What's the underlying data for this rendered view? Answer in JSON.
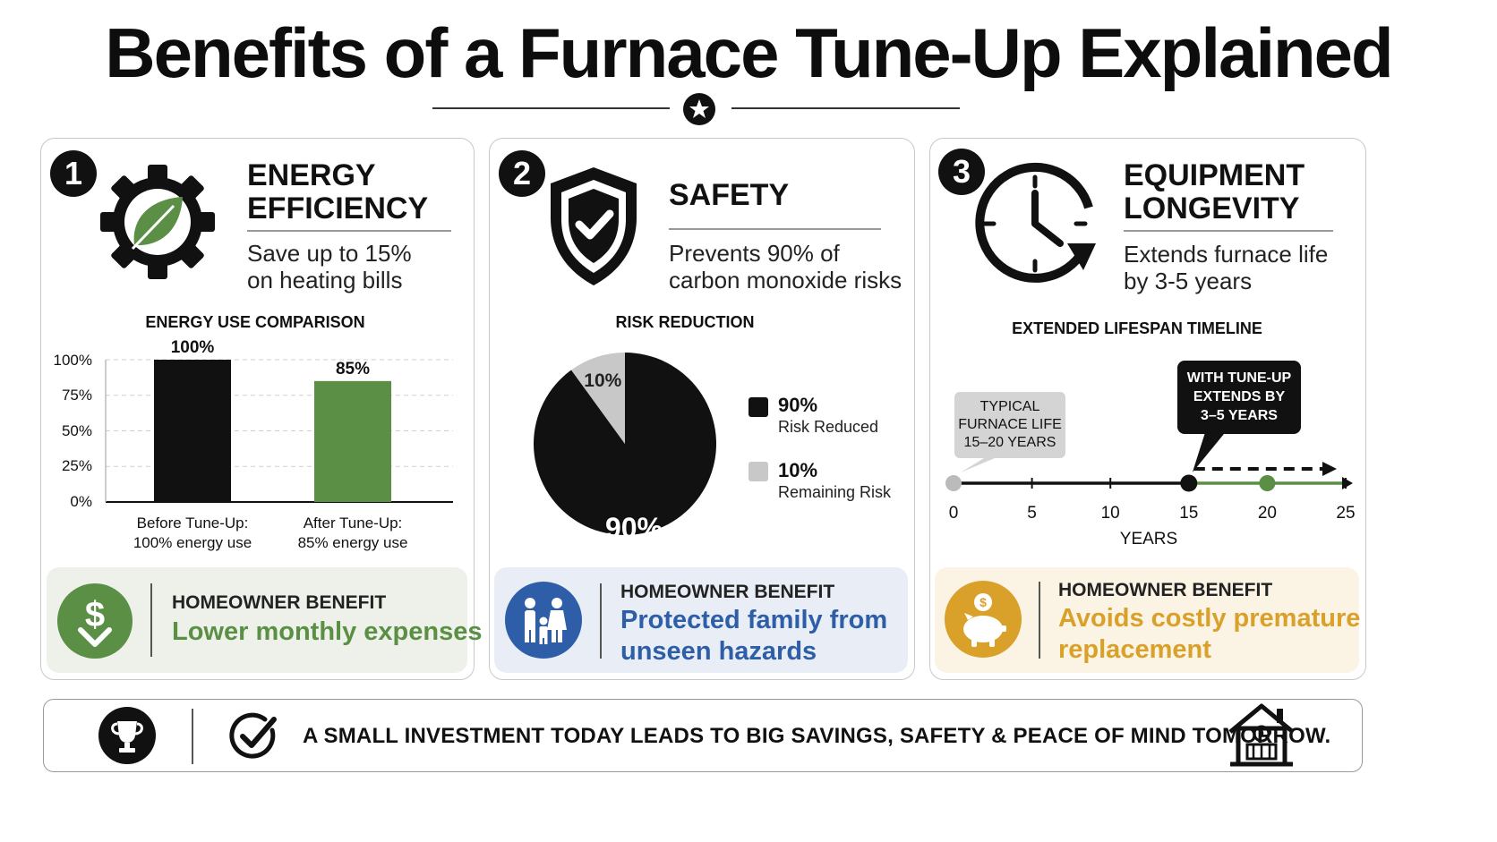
{
  "title": "Benefits of a Furnace Tune-Up Explained",
  "cards": [
    {
      "number": "1",
      "title_line1": "ENERGY",
      "title_line2": "EFFICIENCY",
      "subtitle_line1": "Save up to 15%",
      "subtitle_line2": "on heating bills",
      "icon": "gear-leaf-icon",
      "benefit_heading": "HOMEOWNER BENEFIT",
      "benefit_text": "Lower monthly expenses",
      "benefit_icon": "dollar-down-icon",
      "accent": "#5b8f45",
      "benefit_bg": "#edf1e9"
    },
    {
      "number": "2",
      "title_line1": "SAFETY",
      "subtitle_line1": "Prevents 90% of",
      "subtitle_line2": "carbon monoxide risks",
      "icon": "shield-check-icon",
      "benefit_heading": "HOMEOWNER BENEFIT",
      "benefit_text_line1": "Protected family from",
      "benefit_text_line2": "unseen hazards",
      "benefit_icon": "family-icon",
      "accent": "#2f5ea8",
      "benefit_bg": "#e8edf6"
    },
    {
      "number": "3",
      "title_line1": "EQUIPMENT",
      "title_line2": "LONGEVITY",
      "subtitle_line1": "Extends furnace life",
      "subtitle_line2": "by 3-5 years",
      "icon": "clock-icon",
      "benefit_heading": "HOMEOWNER BENEFIT",
      "benefit_text_line1": "Avoids costly premature",
      "benefit_text_line2": "replacement",
      "benefit_icon": "piggy-bank-icon",
      "accent": "#d9a12a",
      "benefit_bg": "#fbf3e3"
    }
  ],
  "chart_data": [
    {
      "type": "bar",
      "title": "ENERGY USE COMPARISON",
      "categories": [
        "Before Tune-Up:\n100% energy use",
        "After Tune-Up:\n85% energy use"
      ],
      "category_line1": [
        "Before Tune-Up:",
        "After Tune-Up:"
      ],
      "category_line2": [
        "100% energy use",
        "85% energy use"
      ],
      "values": [
        100,
        85
      ],
      "data_labels": [
        "100%",
        "85%"
      ],
      "ylim": [
        0,
        100
      ],
      "yticks": [
        "100%",
        "75%",
        "50%",
        "25%",
        "0%"
      ],
      "ytick_values": [
        100,
        75,
        50,
        25,
        0
      ],
      "colors": [
        "#111111",
        "#5b8f45"
      ],
      "grid": true
    },
    {
      "type": "pie",
      "title": "RISK REDUCTION",
      "labels": [
        "Risk Reduced",
        "Remaining Risk"
      ],
      "values": [
        90,
        10
      ],
      "data_labels": [
        "90%",
        "10%"
      ],
      "colors": [
        "#111111",
        "#c8c8c8"
      ],
      "legend_position": "right"
    },
    {
      "type": "line",
      "title": "EXTENDED LIFESPAN TIMELINE",
      "xlabel": "YEARS",
      "x_ticks": [
        0,
        5,
        10,
        15,
        20,
        25
      ],
      "xlim": [
        0,
        25
      ],
      "typical_life_range": [
        15,
        20
      ],
      "markers": [
        0,
        15,
        20
      ],
      "callout_typical": [
        "TYPICAL",
        "FURNACE LIFE",
        "15–20 YEARS"
      ],
      "callout_tuneup": [
        "WITH TUNE-UP",
        "EXTENDS BY",
        "3–5 YEARS"
      ],
      "colors": {
        "axis": "#111111",
        "extended": "#5b8f45",
        "start": "#bbbbbb"
      }
    }
  ],
  "footer": {
    "text": "A SMALL INVESTMENT TODAY LEADS TO BIG SAVINGS, SAFETY & PEACE OF MIND TOMORROW.",
    "icons": [
      "trophy-icon",
      "checkmark-circle-icon",
      "house-furnace-icon"
    ]
  }
}
